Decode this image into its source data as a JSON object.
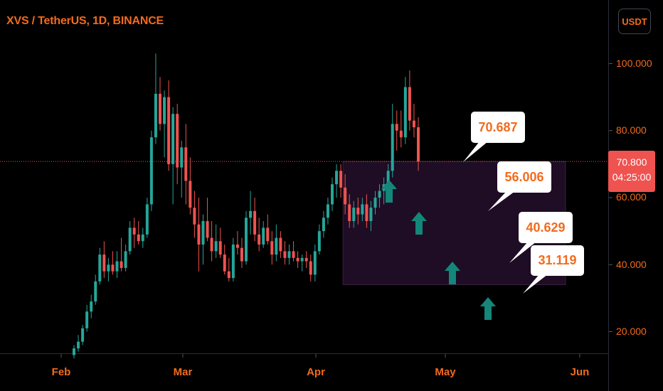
{
  "header": {
    "symbol_title": "XVS / TetherUS, 1D, BINANCE",
    "currency_button": "USDT"
  },
  "price_tag": {
    "price": "70.800",
    "countdown": "04:25:00"
  },
  "colors": {
    "up": "#26a69a",
    "down": "#ef5350",
    "accent_text": "#f26b1d",
    "zone_fill": "#1e0d24",
    "arrow": "#14867a"
  },
  "chart_data": {
    "type": "candlestick",
    "title": "XVS / TetherUS, 1D, BINANCE",
    "ylim": [
      13,
      113
    ],
    "y_ticks": [
      "20.000",
      "40.000",
      "60.000",
      "80.000",
      "100.000"
    ],
    "x_ticks": [
      "Feb",
      "Mar",
      "Apr",
      "May",
      "Jun"
    ],
    "last_price": 70.8,
    "candles": [
      {
        "o": 13,
        "h": 16,
        "l": 12,
        "c": 15
      },
      {
        "o": 15,
        "h": 19,
        "l": 14,
        "c": 17
      },
      {
        "o": 17,
        "h": 22,
        "l": 16,
        "c": 21
      },
      {
        "o": 21,
        "h": 28,
        "l": 20,
        "c": 26
      },
      {
        "o": 26,
        "h": 31,
        "l": 24,
        "c": 29
      },
      {
        "o": 29,
        "h": 37,
        "l": 28,
        "c": 35
      },
      {
        "o": 35,
        "h": 45,
        "l": 34,
        "c": 43
      },
      {
        "o": 43,
        "h": 47,
        "l": 36,
        "c": 38
      },
      {
        "o": 38,
        "h": 42,
        "l": 35,
        "c": 40
      },
      {
        "o": 40,
        "h": 44,
        "l": 37,
        "c": 38
      },
      {
        "o": 38,
        "h": 44,
        "l": 36,
        "c": 41
      },
      {
        "o": 41,
        "h": 48,
        "l": 38,
        "c": 39
      },
      {
        "o": 39,
        "h": 46,
        "l": 38,
        "c": 44
      },
      {
        "o": 44,
        "h": 53,
        "l": 43,
        "c": 51
      },
      {
        "o": 51,
        "h": 54,
        "l": 45,
        "c": 49
      },
      {
        "o": 49,
        "h": 53,
        "l": 46,
        "c": 47
      },
      {
        "o": 47,
        "h": 51,
        "l": 45,
        "c": 49
      },
      {
        "o": 49,
        "h": 60,
        "l": 48,
        "c": 58
      },
      {
        "o": 58,
        "h": 80,
        "l": 56,
        "c": 78
      },
      {
        "o": 78,
        "h": 103,
        "l": 76,
        "c": 91
      },
      {
        "o": 91,
        "h": 96,
        "l": 80,
        "c": 82
      },
      {
        "o": 82,
        "h": 92,
        "l": 72,
        "c": 90
      },
      {
        "o": 90,
        "h": 95,
        "l": 68,
        "c": 70
      },
      {
        "o": 70,
        "h": 87,
        "l": 58,
        "c": 85
      },
      {
        "o": 85,
        "h": 88,
        "l": 64,
        "c": 69
      },
      {
        "o": 69,
        "h": 77,
        "l": 60,
        "c": 75
      },
      {
        "o": 75,
        "h": 82,
        "l": 58,
        "c": 65
      },
      {
        "o": 65,
        "h": 72,
        "l": 55,
        "c": 57
      },
      {
        "o": 57,
        "h": 62,
        "l": 48,
        "c": 52
      },
      {
        "o": 52,
        "h": 60,
        "l": 38,
        "c": 46
      },
      {
        "o": 46,
        "h": 55,
        "l": 40,
        "c": 53
      },
      {
        "o": 53,
        "h": 60,
        "l": 47,
        "c": 48
      },
      {
        "o": 48,
        "h": 53,
        "l": 41,
        "c": 44
      },
      {
        "o": 44,
        "h": 52,
        "l": 42,
        "c": 47
      },
      {
        "o": 47,
        "h": 51,
        "l": 42,
        "c": 43
      },
      {
        "o": 43,
        "h": 46,
        "l": 37,
        "c": 38
      },
      {
        "o": 38,
        "h": 42,
        "l": 35,
        "c": 36
      },
      {
        "o": 36,
        "h": 48,
        "l": 35,
        "c": 46
      },
      {
        "o": 46,
        "h": 50,
        "l": 43,
        "c": 45
      },
      {
        "o": 45,
        "h": 48,
        "l": 39,
        "c": 41
      },
      {
        "o": 41,
        "h": 56,
        "l": 40,
        "c": 54
      },
      {
        "o": 54,
        "h": 62,
        "l": 49,
        "c": 56
      },
      {
        "o": 56,
        "h": 60,
        "l": 47,
        "c": 49
      },
      {
        "o": 49,
        "h": 54,
        "l": 44,
        "c": 46
      },
      {
        "o": 46,
        "h": 53,
        "l": 45,
        "c": 51
      },
      {
        "o": 51,
        "h": 55,
        "l": 46,
        "c": 47
      },
      {
        "o": 47,
        "h": 50,
        "l": 40,
        "c": 43
      },
      {
        "o": 43,
        "h": 52,
        "l": 41,
        "c": 48
      },
      {
        "o": 48,
        "h": 50,
        "l": 42,
        "c": 44
      },
      {
        "o": 44,
        "h": 47,
        "l": 40,
        "c": 42
      },
      {
        "o": 42,
        "h": 46,
        "l": 40,
        "c": 44
      },
      {
        "o": 44,
        "h": 47,
        "l": 41,
        "c": 42
      },
      {
        "o": 42,
        "h": 44,
        "l": 39,
        "c": 41
      },
      {
        "o": 41,
        "h": 43,
        "l": 38,
        "c": 42
      },
      {
        "o": 42,
        "h": 44,
        "l": 39,
        "c": 41
      },
      {
        "o": 41,
        "h": 43,
        "l": 35,
        "c": 37
      },
      {
        "o": 37,
        "h": 46,
        "l": 35,
        "c": 44
      },
      {
        "o": 44,
        "h": 52,
        "l": 43,
        "c": 50
      },
      {
        "o": 50,
        "h": 56,
        "l": 48,
        "c": 54
      },
      {
        "o": 54,
        "h": 60,
        "l": 52,
        "c": 58
      },
      {
        "o": 58,
        "h": 66,
        "l": 56,
        "c": 64
      },
      {
        "o": 64,
        "h": 70,
        "l": 60,
        "c": 68
      },
      {
        "o": 68,
        "h": 70,
        "l": 60,
        "c": 63
      },
      {
        "o": 63,
        "h": 67,
        "l": 55,
        "c": 58
      },
      {
        "o": 58,
        "h": 61,
        "l": 51,
        "c": 53
      },
      {
        "o": 53,
        "h": 59,
        "l": 51,
        "c": 57
      },
      {
        "o": 57,
        "h": 60,
        "l": 52,
        "c": 55
      },
      {
        "o": 55,
        "h": 60,
        "l": 53,
        "c": 58
      },
      {
        "o": 58,
        "h": 61,
        "l": 51,
        "c": 53
      },
      {
        "o": 53,
        "h": 59,
        "l": 50,
        "c": 57
      },
      {
        "o": 57,
        "h": 62,
        "l": 55,
        "c": 60
      },
      {
        "o": 60,
        "h": 64,
        "l": 57,
        "c": 62
      },
      {
        "o": 62,
        "h": 66,
        "l": 58,
        "c": 64
      },
      {
        "o": 64,
        "h": 70,
        "l": 60,
        "c": 68
      },
      {
        "o": 68,
        "h": 88,
        "l": 66,
        "c": 82
      },
      {
        "o": 82,
        "h": 86,
        "l": 74,
        "c": 80
      },
      {
        "o": 80,
        "h": 86,
        "l": 75,
        "c": 78
      },
      {
        "o": 78,
        "h": 96,
        "l": 76,
        "c": 93
      },
      {
        "o": 93,
        "h": 98,
        "l": 80,
        "c": 83
      },
      {
        "o": 83,
        "h": 88,
        "l": 78,
        "c": 81
      },
      {
        "o": 81,
        "h": 84,
        "l": 68,
        "c": 70.8
      }
    ],
    "zone": {
      "start_index": 63,
      "end_date_approx": "late May",
      "y_top": 70.8,
      "y_bottom": 34
    },
    "callouts": [
      "70.687",
      "56.006",
      "40.629",
      "31.119"
    ],
    "arrows": 4
  }
}
